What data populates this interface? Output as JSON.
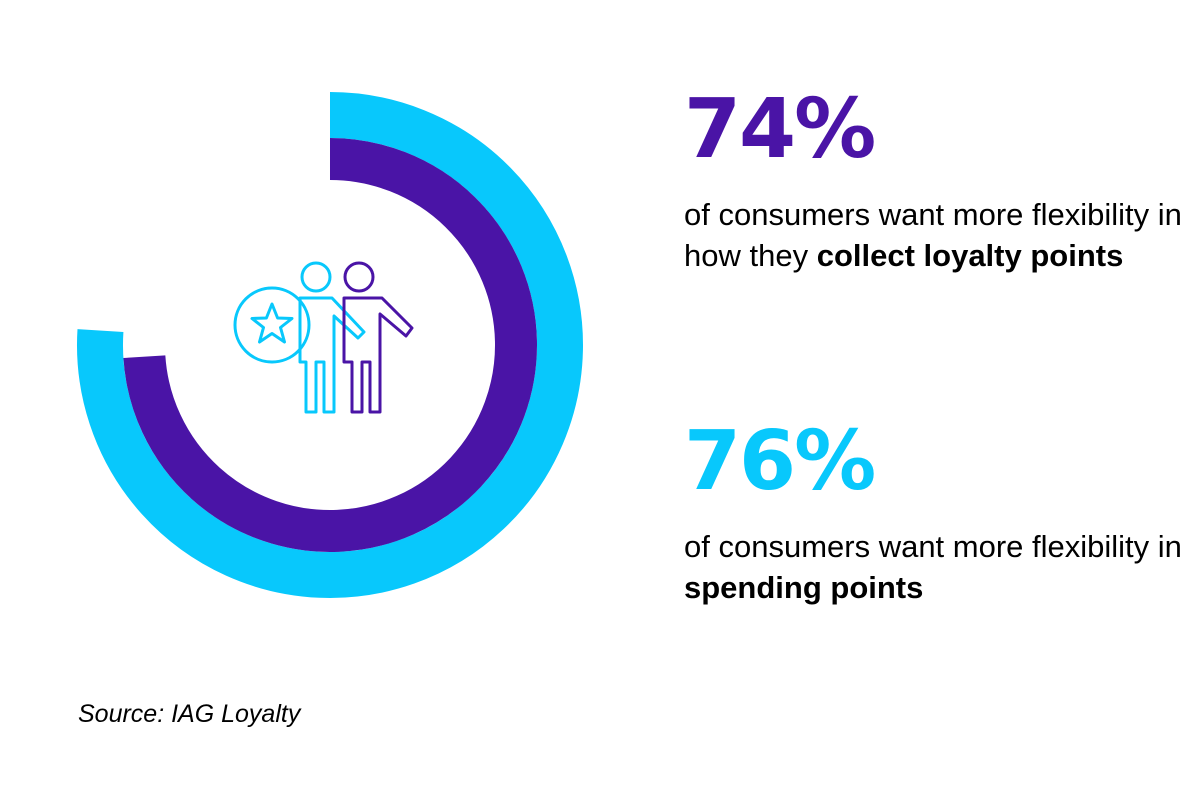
{
  "colors": {
    "purple": "#4a14a6",
    "cyan": "#08c8fc",
    "text": "#000000",
    "background": "#ffffff"
  },
  "chart_data": {
    "type": "donut",
    "title": "",
    "series": [
      {
        "name": "",
        "value": 76,
        "unit": "%",
        "color": "#08c8fc",
        "ring": "outer"
      },
      {
        "name": "",
        "value": 74,
        "unit": "%",
        "color": "#4a14a6",
        "ring": "inner"
      }
    ],
    "max": 100,
    "center_icon": "people-with-star-badge-icon"
  },
  "stats": [
    {
      "value": "74%",
      "color": "#4a14a6",
      "text_regular": "of consumers want more flexibility in how they ",
      "text_bold": "collect loyalty points"
    },
    {
      "value": "76%",
      "color": "#08c8fc",
      "text_regular": "of consumers want more flexibility in ",
      "text_bold": "spending points"
    }
  ],
  "source": "Source: IAG Loyalty"
}
